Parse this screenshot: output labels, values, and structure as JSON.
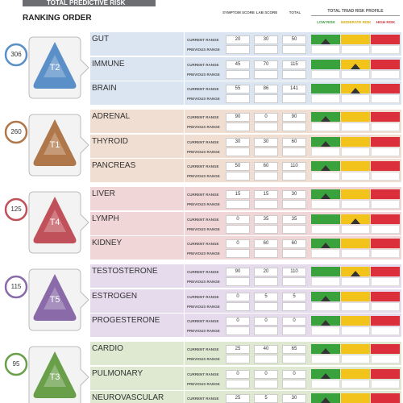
{
  "header": {
    "title": "TOTAL PREDICTIVE RISK",
    "subtitle": "RANKING ORDER"
  },
  "columns": {
    "symptom": "SYMPTOM SCORE",
    "lab": "LAB SCORE",
    "total": "TOTAL",
    "profile": "TOTAL TRIAD RISK PROFILE"
  },
  "legend": {
    "low": "LOW RISK",
    "moderate": "MODERATE RISK",
    "high": "HIGH RISK"
  },
  "row_labels": {
    "current": "CURRENT RANGE",
    "previous": "PREVIOUS RANGE"
  },
  "groups": [
    {
      "score": "306",
      "label": "T2",
      "color": "#5b8fc7",
      "bg": "#dbe5f1",
      "rows": [
        {
          "name": "GUT",
          "symptom": "20",
          "lab": "30",
          "total": "50",
          "risk": "low"
        },
        {
          "name": "IMMUNE",
          "symptom": "45",
          "lab": "70",
          "total": "115",
          "risk": "moderate"
        },
        {
          "name": "BRAIN",
          "symptom": "55",
          "lab": "86",
          "total": "141",
          "risk": "moderate"
        }
      ]
    },
    {
      "score": "260",
      "label": "T1",
      "color": "#b0784a",
      "bg": "#f1ded2",
      "rows": [
        {
          "name": "ADRENAL",
          "symptom": "90",
          "lab": "0",
          "total": "90",
          "risk": "low"
        },
        {
          "name": "THYROID",
          "symptom": "30",
          "lab": "30",
          "total": "60",
          "risk": "low"
        },
        {
          "name": "PANCREAS",
          "symptom": "50",
          "lab": "60",
          "total": "110",
          "risk": "low"
        }
      ]
    },
    {
      "score": "125",
      "label": "T4",
      "color": "#c0505a",
      "bg": "#f1d6d8",
      "rows": [
        {
          "name": "LIVER",
          "symptom": "15",
          "lab": "15",
          "total": "30",
          "risk": "low"
        },
        {
          "name": "LYMPH",
          "symptom": "0",
          "lab": "35",
          "total": "35",
          "risk": "moderate"
        },
        {
          "name": "KIDNEY",
          "symptom": "0",
          "lab": "60",
          "total": "60",
          "risk": "low"
        }
      ]
    },
    {
      "score": "115",
      "label": "T5",
      "color": "#8a6aa8",
      "bg": "#e5dbed",
      "rows": [
        {
          "name": "TESTOSTERONE",
          "symptom": "90",
          "lab": "20",
          "total": "110",
          "risk": "moderate"
        },
        {
          "name": "ESTROGEN",
          "symptom": "0",
          "lab": "5",
          "total": "5",
          "risk": "low"
        },
        {
          "name": "PROGESTERONE",
          "symptom": "0",
          "lab": "0",
          "total": "0",
          "risk": "low"
        }
      ]
    },
    {
      "score": "95",
      "label": "T3",
      "color": "#6a9f4a",
      "bg": "#dfe9d2",
      "rows": [
        {
          "name": "CARDIO",
          "symptom": "25",
          "lab": "40",
          "total": "65",
          "risk": "low"
        },
        {
          "name": "PULMONARY",
          "symptom": "0",
          "lab": "0",
          "total": "0",
          "risk": "low"
        },
        {
          "name": "NEUROVASCULAR",
          "symptom": "25",
          "lab": "5",
          "total": "30",
          "risk": "low"
        }
      ]
    }
  ]
}
